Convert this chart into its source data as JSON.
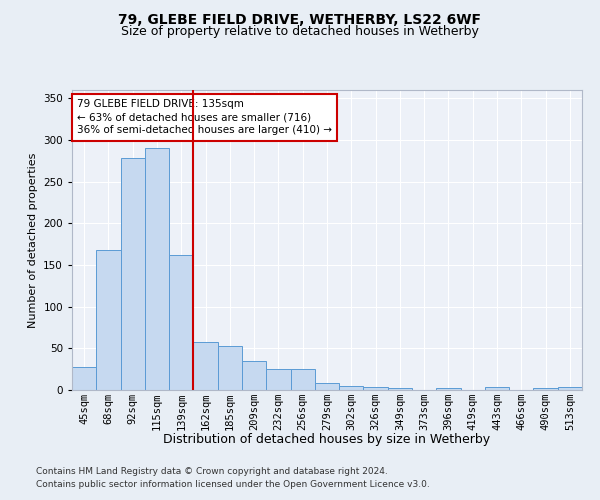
{
  "title1": "79, GLEBE FIELD DRIVE, WETHERBY, LS22 6WF",
  "title2": "Size of property relative to detached houses in Wetherby",
  "xlabel": "Distribution of detached houses by size in Wetherby",
  "ylabel": "Number of detached properties",
  "footnote1": "Contains HM Land Registry data © Crown copyright and database right 2024.",
  "footnote2": "Contains public sector information licensed under the Open Government Licence v3.0.",
  "bar_labels": [
    "45sqm",
    "68sqm",
    "92sqm",
    "115sqm",
    "139sqm",
    "162sqm",
    "185sqm",
    "209sqm",
    "232sqm",
    "256sqm",
    "279sqm",
    "302sqm",
    "326sqm",
    "349sqm",
    "373sqm",
    "396sqm",
    "419sqm",
    "443sqm",
    "466sqm",
    "490sqm",
    "513sqm"
  ],
  "bar_values": [
    28,
    168,
    278,
    290,
    162,
    58,
    53,
    35,
    25,
    25,
    9,
    5,
    4,
    2,
    0,
    2,
    0,
    4,
    0,
    2,
    4
  ],
  "bar_color": "#c6d9f0",
  "bar_edge_color": "#5b9bd5",
  "vline_x": 4.5,
  "vline_color": "#cc0000",
  "annotation_text": "79 GLEBE FIELD DRIVE: 135sqm\n← 63% of detached houses are smaller (716)\n36% of semi-detached houses are larger (410) →",
  "annotation_box_color": "#ffffff",
  "annotation_box_edge": "#cc0000",
  "ylim": [
    0,
    360
  ],
  "yticks": [
    0,
    50,
    100,
    150,
    200,
    250,
    300,
    350
  ],
  "bg_color": "#e8eef5",
  "plot_bg_color": "#edf1f8",
  "grid_color": "#ffffff",
  "title1_fontsize": 10,
  "title2_fontsize": 9,
  "ylabel_fontsize": 8,
  "xlabel_fontsize": 9,
  "tick_fontsize": 7.5,
  "annot_fontsize": 7.5,
  "footnote_fontsize": 6.5
}
